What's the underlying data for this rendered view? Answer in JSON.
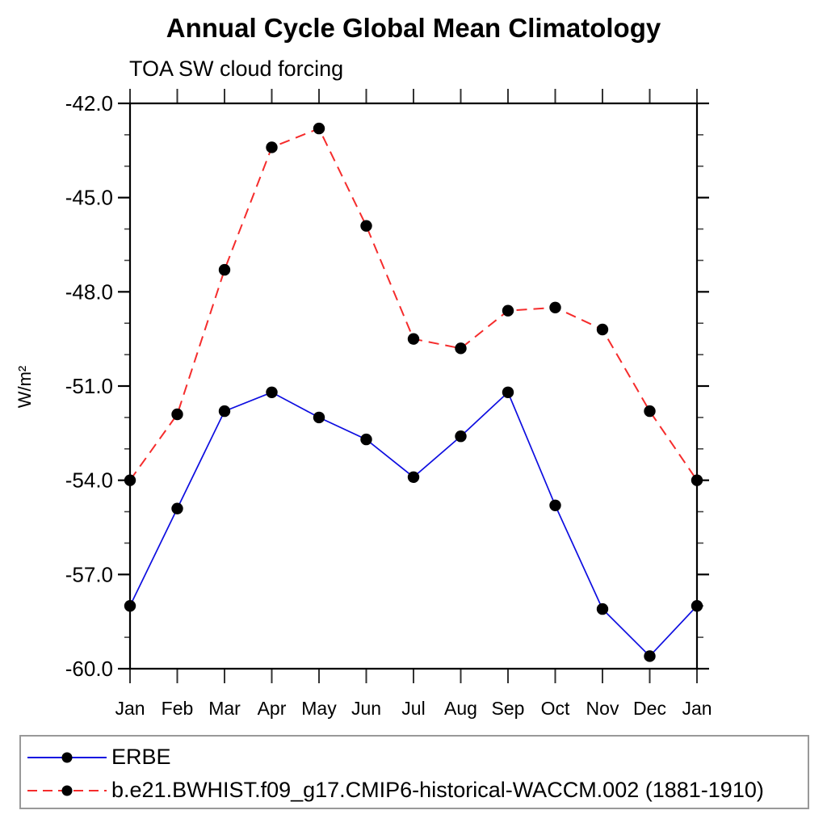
{
  "page": {
    "title": "Annual Cycle Global Mean Climatology",
    "subtitle": "TOA SW cloud forcing"
  },
  "chart_data": {
    "type": "line",
    "title": "Annual Cycle Global Mean Climatology",
    "subtitle": "TOA SW cloud forcing",
    "ylabel": "W/m²",
    "x_categories": [
      "Jan",
      "Feb",
      "Mar",
      "Apr",
      "May",
      "Jun",
      "Jul",
      "Aug",
      "Sep",
      "Oct",
      "Nov",
      "Dec",
      "Jan"
    ],
    "ylim": [
      -60.0,
      -42.0
    ],
    "y_major_ticks": [
      -42,
      -45,
      -48,
      -51,
      -54,
      -57,
      -60
    ],
    "y_tick_labels": [
      "-42.0",
      "-45.0",
      "-48.0",
      "-51.0",
      "-54.0",
      "-57.0",
      "-60.0"
    ],
    "y_minor_step": 1.0,
    "grid": "off",
    "legend_position": "bottom-box",
    "marker_color": "#000000",
    "series": [
      {
        "name": "ERBE",
        "style": "solid",
        "color": "#0d0de0",
        "values": [
          -58.0,
          -54.9,
          -51.8,
          -51.2,
          -52.0,
          -52.7,
          -53.9,
          -52.6,
          -51.2,
          -54.8,
          -58.1,
          -59.6,
          -58.0
        ]
      },
      {
        "name": "b.e21.BWHIST.f09_g17.CMIP6-historical-WACCM.002 (1881-1910)",
        "style": "dashed",
        "color": "#f52c2c",
        "values": [
          -54.0,
          -51.9,
          -47.3,
          -43.4,
          -42.8,
          -45.9,
          -49.5,
          -49.8,
          -48.6,
          -48.5,
          -49.2,
          -51.8,
          -54.0
        ]
      }
    ]
  }
}
